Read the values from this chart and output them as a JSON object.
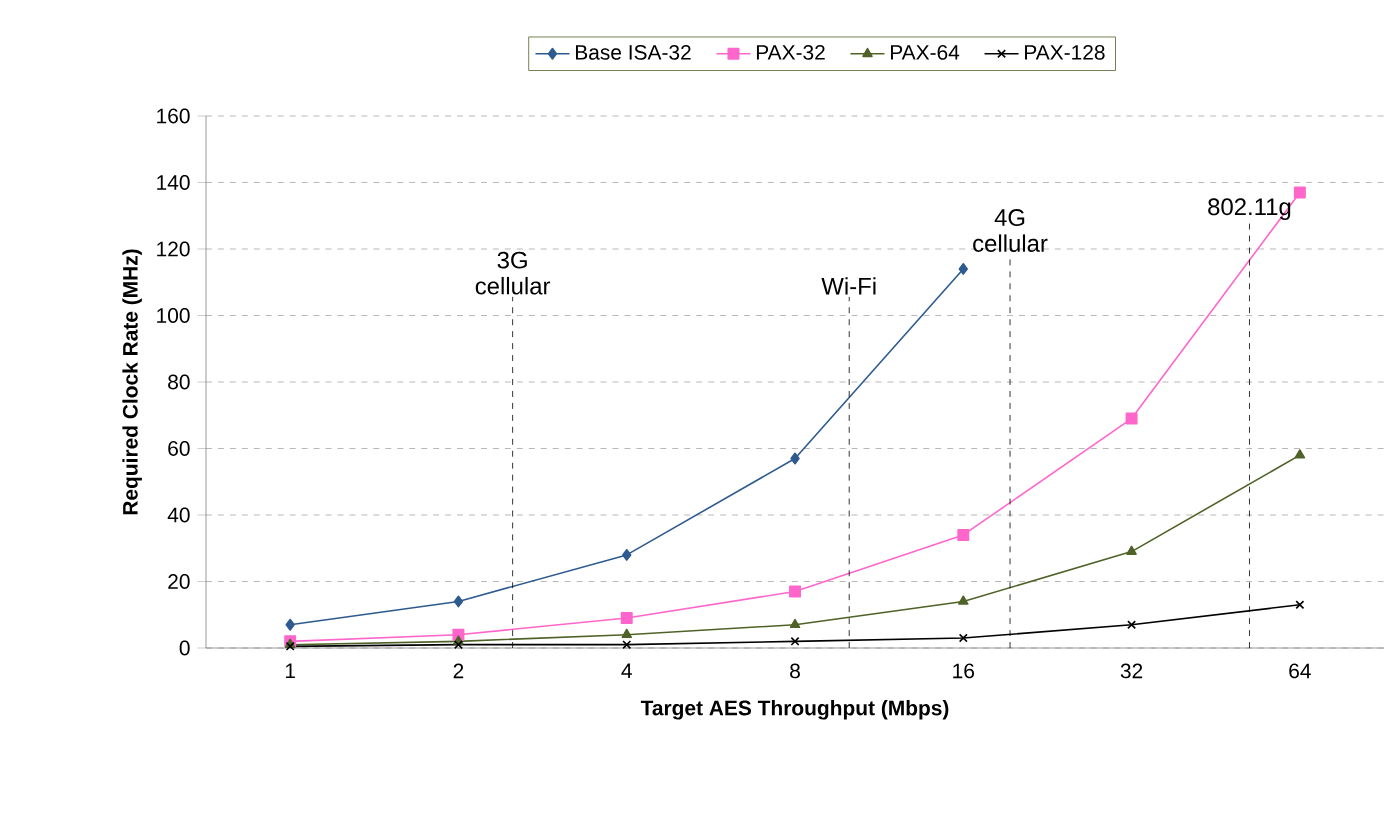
{
  "chart_data": {
    "type": "line",
    "xlabel": "Target AES Throughput (Mbps)",
    "ylabel": "Required Clock Rate (MHz)",
    "x": [
      1,
      2,
      4,
      8,
      16,
      32,
      64
    ],
    "log": "x",
    "xlim": [
      0.7071,
      90.51
    ],
    "xticks": [
      1,
      2,
      4,
      8,
      16,
      32,
      64
    ],
    "ylim": [
      0,
      160
    ],
    "yticks": [
      0,
      20,
      40,
      60,
      80,
      100,
      120,
      140,
      160
    ],
    "grid": "y",
    "legend": "top",
    "line_style": "solid",
    "series": [
      {
        "name": "Base ISA-32",
        "color": "#2e5a8f",
        "marker": "diamond",
        "values": [
          7,
          14,
          28,
          57,
          114,
          null,
          null
        ]
      },
      {
        "name": "PAX-32",
        "color": "#ff66cc",
        "marker": "square",
        "values": [
          2,
          4,
          9,
          17,
          34,
          69,
          137
        ]
      },
      {
        "name": "PAX-64",
        "color": "#4f6228",
        "marker": "triangle",
        "values": [
          1,
          2,
          4,
          7,
          14,
          29,
          58
        ]
      },
      {
        "name": "PAX-128",
        "color": "#000000",
        "marker": "cross",
        "values": [
          0.5,
          1,
          1,
          2,
          3,
          7,
          13
        ]
      }
    ],
    "ref_lines": [
      {
        "axis": "x",
        "value": 2.5,
        "label": "3G cellular",
        "line_style": "dashed"
      },
      {
        "axis": "x",
        "value": 10,
        "label": "Wi-Fi",
        "line_style": "dashed"
      },
      {
        "axis": "x",
        "value": 19.4,
        "label": "4G cellular",
        "line_style": "dashed"
      },
      {
        "axis": "x",
        "value": 52,
        "label": "802.11g",
        "line_style": "dashed"
      }
    ]
  }
}
